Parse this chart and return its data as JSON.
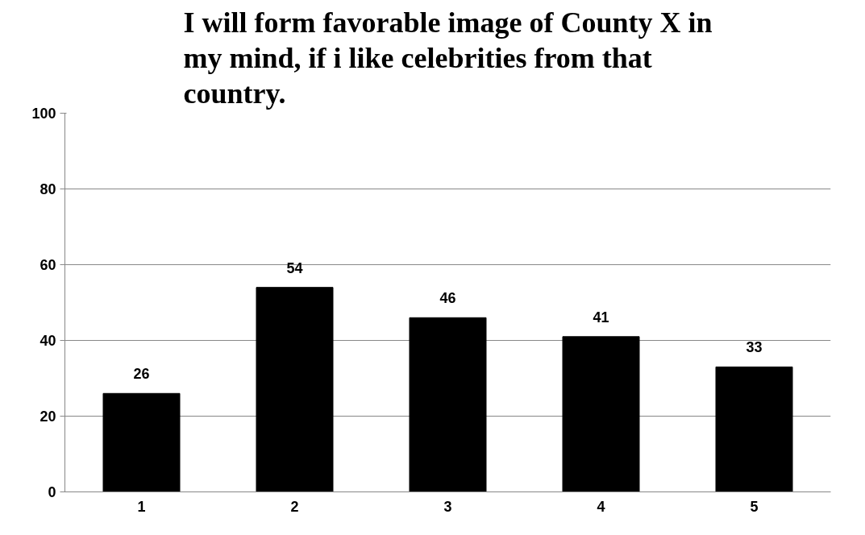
{
  "chart_data": {
    "type": "bar",
    "title": "I will form favorable image of County X in my mind, if i like celebrities from that country.",
    "categories": [
      "1",
      "2",
      "3",
      "4",
      "5"
    ],
    "values": [
      26,
      54,
      46,
      41,
      33
    ],
    "color": "#000000",
    "ylim": [
      0,
      100
    ],
    "yticks": [
      0,
      20,
      40,
      60,
      80,
      100
    ],
    "grid": "y",
    "data_labels": true
  }
}
